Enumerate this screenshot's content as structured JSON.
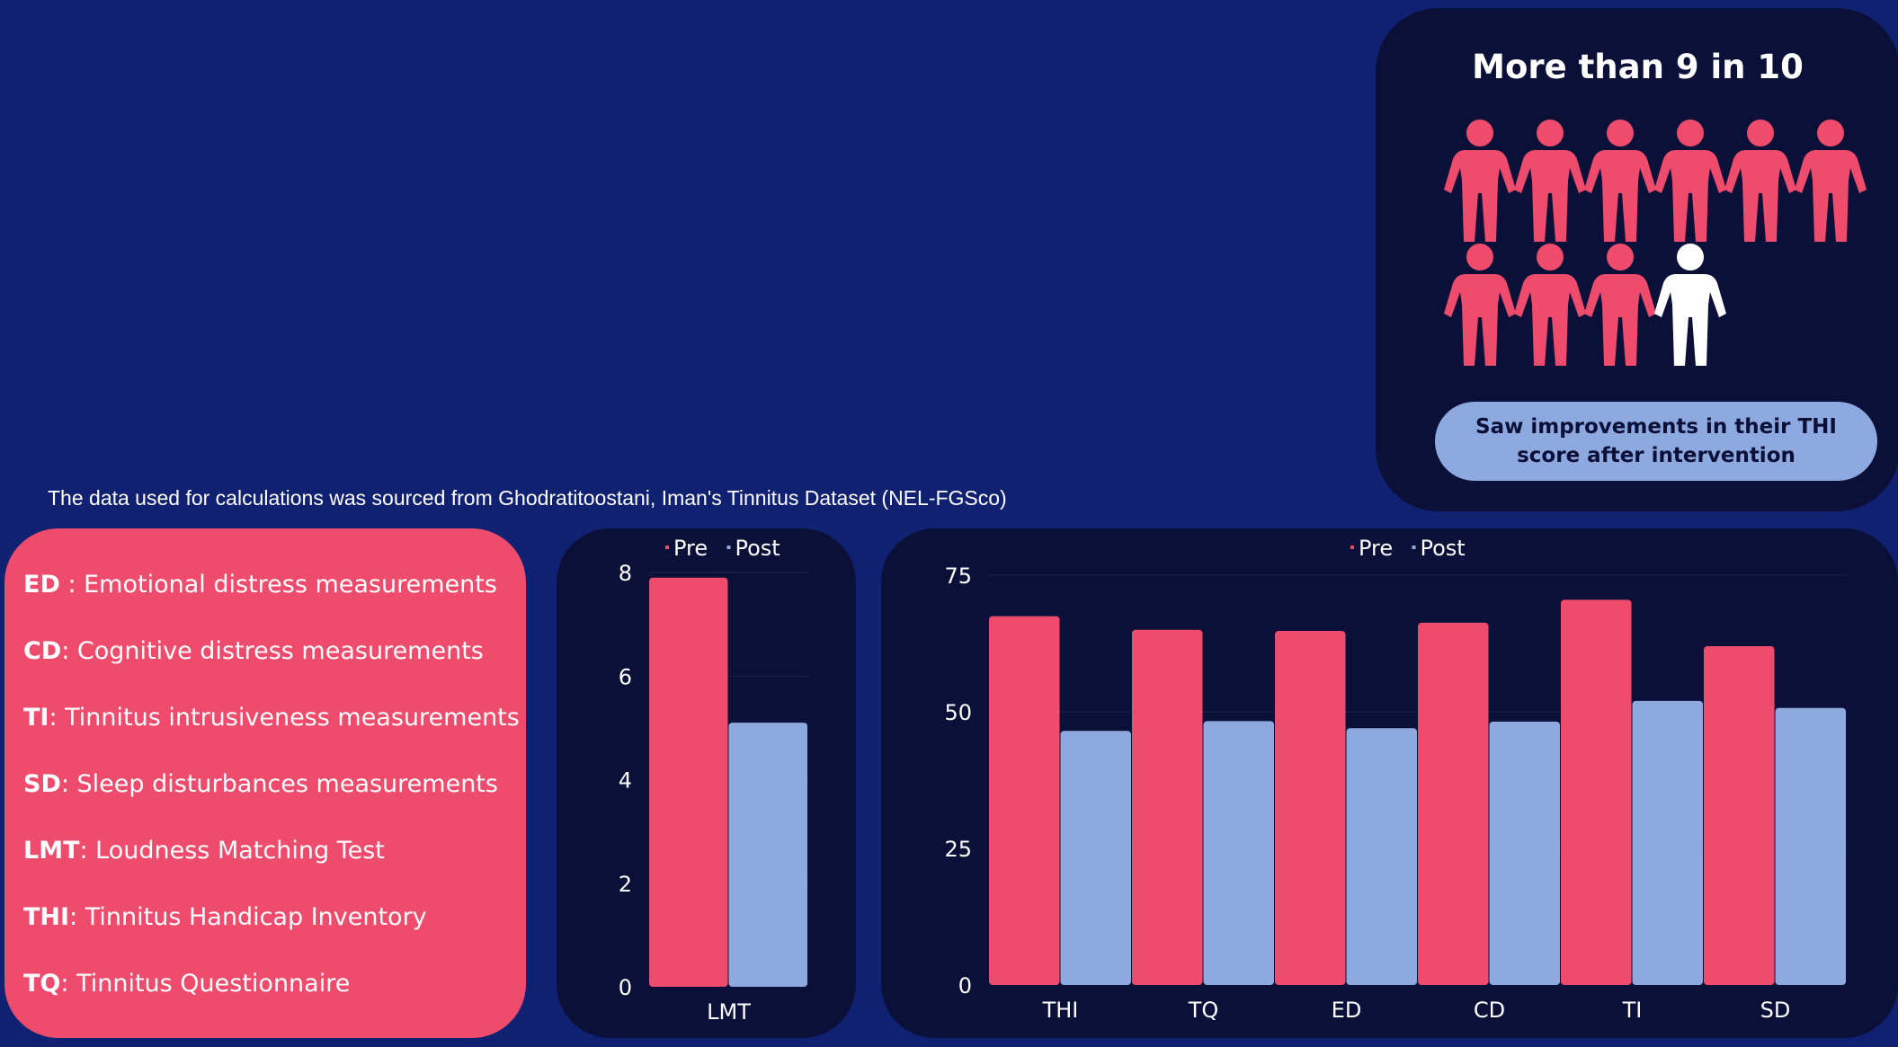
{
  "colors": {
    "background": "#112172",
    "card": "#0a1038",
    "pre": "#ef4b6c",
    "post": "#8ea9e0",
    "legend_card": "#ef4b6c",
    "pill": "#8ea9e0",
    "person_highlight": "#ffffff"
  },
  "infographic": {
    "title": "More than 9 in 10",
    "people_total": 10,
    "people_highlighted": 9,
    "caption": "Saw improvements in their THI score after intervention",
    "icon": "person-icon"
  },
  "source_note": "The data used for calculations was sourced from Ghodratitoostani, Iman's Tinnitus Dataset (NEL-FGSco)",
  "glossary": [
    {
      "abbr": "ED",
      "text": " : Emotional distress measurements"
    },
    {
      "abbr": "CD",
      "text": ": Cognitive distress measurements"
    },
    {
      "abbr": "TI",
      "text": ": Tinnitus intrusiveness measurements"
    },
    {
      "abbr": "SD",
      "text": ": Sleep disturbances measurements"
    },
    {
      "abbr": "LMT",
      "text": ": Loudness Matching Test"
    },
    {
      "abbr": "THI",
      "text": ": Tinnitus Handicap Inventory"
    },
    {
      "abbr": "TQ",
      "text": ": Tinnitus Questionnaire"
    }
  ],
  "chart_data": [
    {
      "type": "bar",
      "categories": [
        "LMT"
      ],
      "series": [
        {
          "name": "Pre",
          "values": [
            7.9
          ]
        },
        {
          "name": "Post",
          "values": [
            5.1
          ]
        }
      ],
      "ylim": [
        0,
        8
      ],
      "yticks": [
        0,
        2,
        4,
        6,
        8
      ],
      "legend": "top",
      "grid": true
    },
    {
      "type": "bar",
      "categories": [
        "THI",
        "TQ",
        "ED",
        "CD",
        "TI",
        "SD"
      ],
      "series": [
        {
          "name": "Pre",
          "values": [
            67.5,
            65,
            64.8,
            66.3,
            70.5,
            62
          ]
        },
        {
          "name": "Post",
          "values": [
            46.5,
            48.3,
            47,
            48.2,
            52,
            50.7
          ]
        }
      ],
      "ylim": [
        0,
        75
      ],
      "yticks": [
        0,
        25,
        50,
        75
      ],
      "legend": "top",
      "grid": true
    }
  ]
}
